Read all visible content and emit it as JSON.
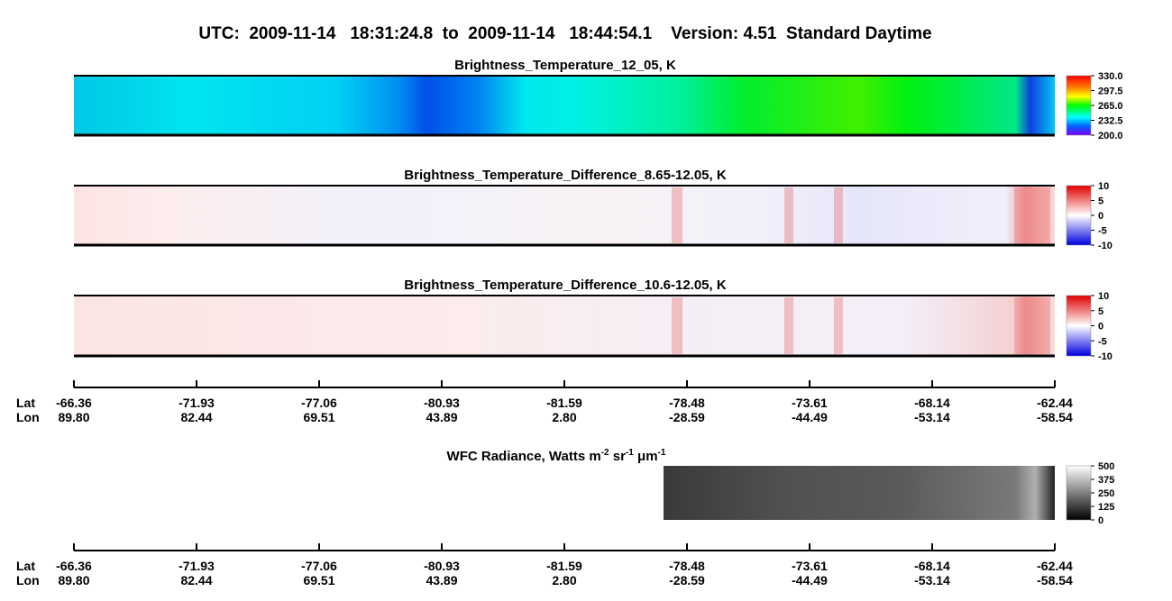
{
  "header": {
    "title": "UTC:  2009-11-14   18:31:24.8  to  2009-11-14   18:44:54.1    Version: 4.51  Standard Daytime"
  },
  "panels": [
    {
      "title": "Brightness_Temperature_12_05, K",
      "colorbar_ticks": [
        "330.0",
        "297.5",
        "265.0",
        "232.5",
        "200.0"
      ]
    },
    {
      "title": "Brightness_Temperature_Difference_8.65-12.05, K",
      "colorbar_ticks": [
        "10",
        "5",
        "0",
        "-5",
        "-10"
      ]
    },
    {
      "title": "Brightness_Temperature_Difference_10.6-12.05, K",
      "colorbar_ticks": [
        "10",
        "5",
        "0",
        "-5",
        "-10"
      ]
    },
    {
      "title_parts": [
        "WFC Radiance, Watts m",
        "-2",
        " sr",
        "-1",
        " μm",
        "-1"
      ],
      "colorbar_ticks": [
        "500",
        "375",
        "250",
        "125",
        "0"
      ]
    }
  ],
  "axes": [
    {
      "lat_label": "Lat",
      "lon_label": "Lon",
      "lat": [
        "-66.36",
        "-71.93",
        "-77.06",
        "-80.93",
        "-81.59",
        "-78.48",
        "-73.61",
        "-68.14",
        "-62.44"
      ],
      "lon": [
        "89.80",
        "82.44",
        "69.51",
        "43.89",
        "2.80",
        "-28.59",
        "-44.49",
        "-53.14",
        "-58.54"
      ]
    },
    {
      "lat_label": "Lat",
      "lon_label": "Lon",
      "lat": [
        "-66.36",
        "-71.93",
        "-77.06",
        "-80.93",
        "-81.59",
        "-78.48",
        "-73.61",
        "-68.14",
        "-62.44"
      ],
      "lon": [
        "89.80",
        "82.44",
        "69.51",
        "43.89",
        "2.80",
        "-28.59",
        "-44.49",
        "-53.14",
        "-58.54"
      ]
    }
  ]
}
